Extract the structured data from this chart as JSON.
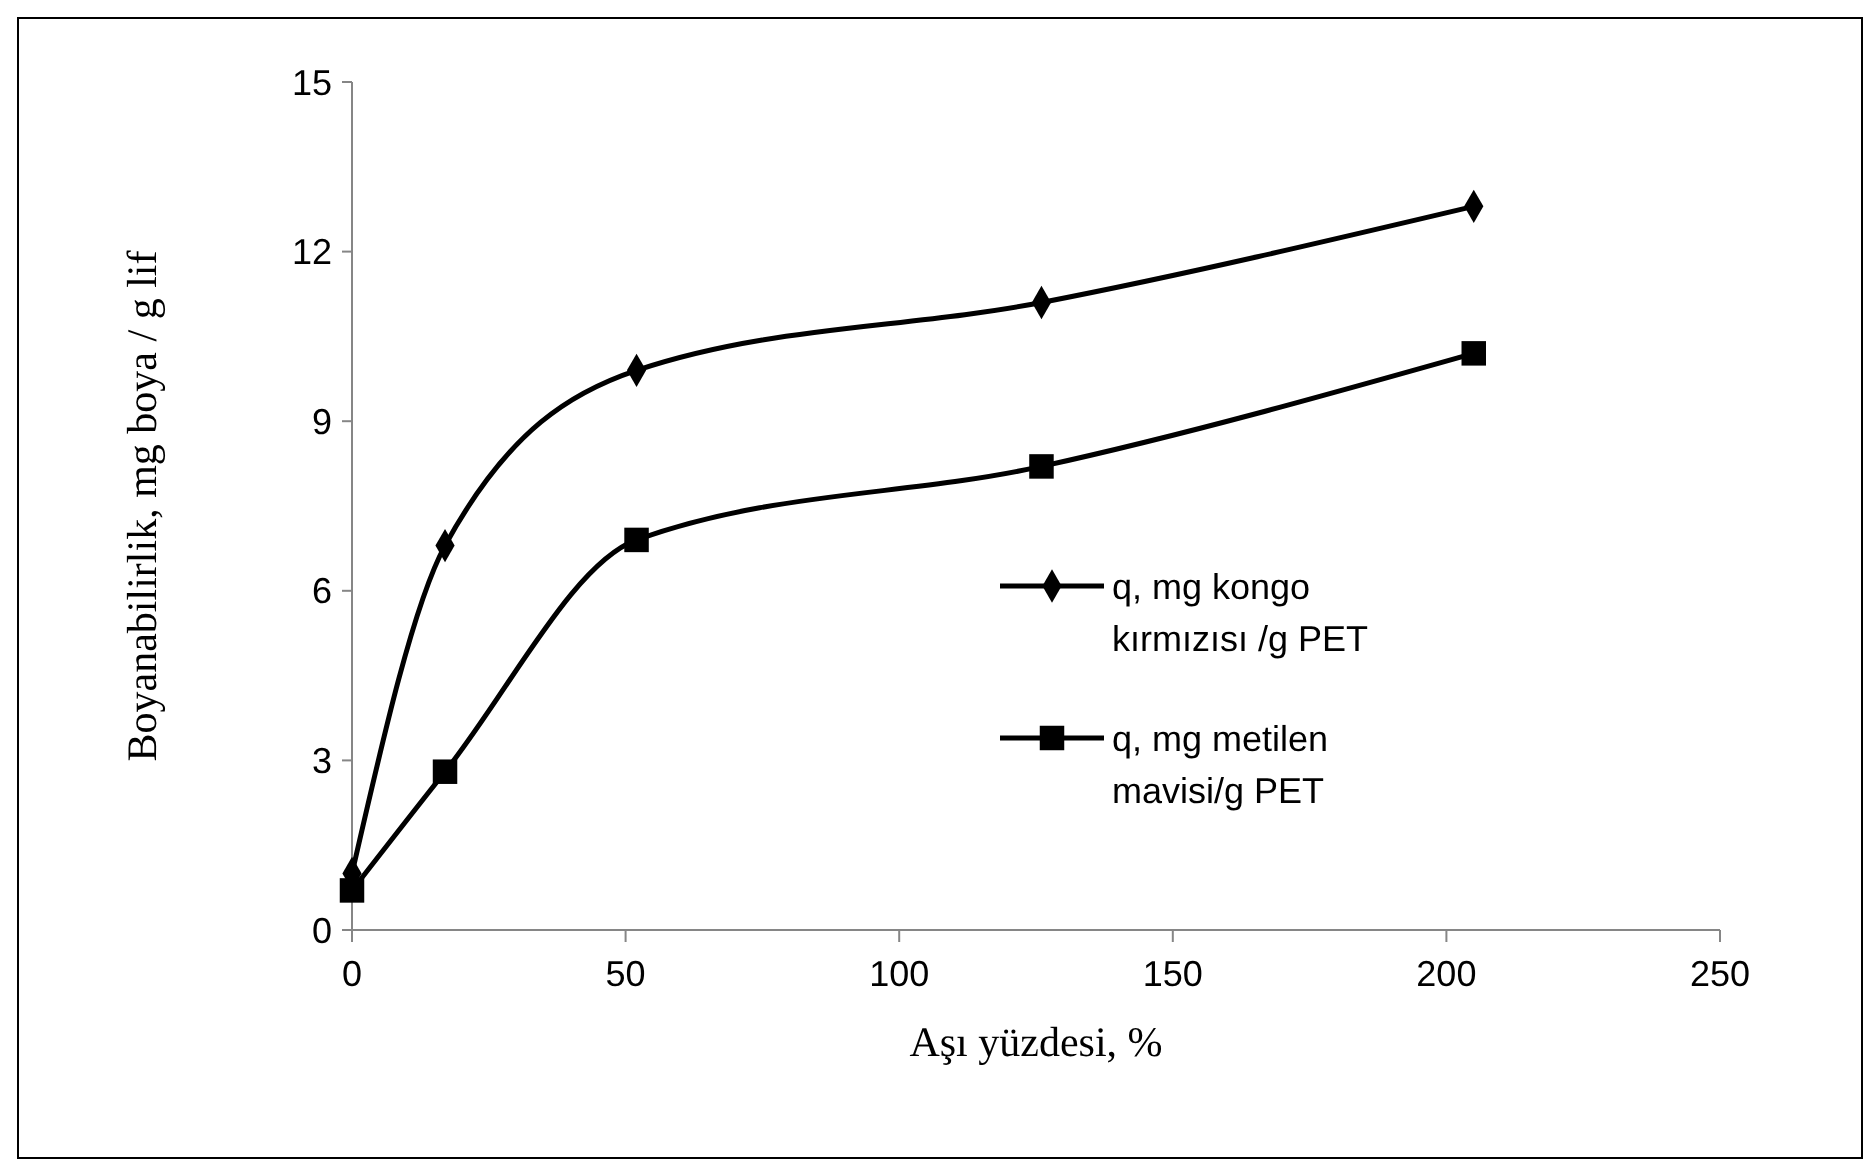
{
  "chart_data": {
    "type": "line",
    "xlabel": "Aşı yüzdesi, %",
    "ylabel": "Boyanabilirlik, mg boya / g lif",
    "xlim": [
      0,
      250
    ],
    "xticks": [
      0,
      50,
      100,
      150,
      200,
      250
    ],
    "ylim": [
      0,
      15
    ],
    "yticks": [
      0,
      3,
      6,
      9,
      12,
      15
    ],
    "grid": false,
    "legend": "right",
    "series": [
      {
        "name": "q, mg kongo kırmızısı /g PET",
        "color": "#000000",
        "marker": "diamond",
        "x": [
          0,
          17,
          52,
          126,
          205
        ],
        "values": [
          1.0,
          6.8,
          9.9,
          11.1,
          12.8
        ]
      },
      {
        "name": "q, mg metilen mavisi/g PET",
        "color": "#000000",
        "marker": "square",
        "x": [
          0,
          17,
          52,
          126,
          205
        ],
        "values": [
          0.7,
          2.8,
          6.9,
          8.2,
          10.2
        ]
      }
    ]
  }
}
